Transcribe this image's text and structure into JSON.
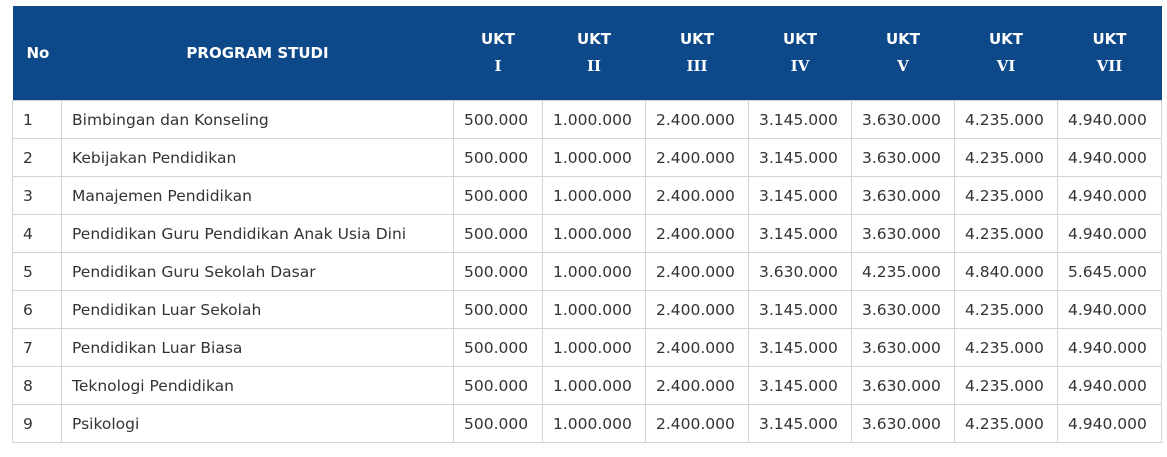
{
  "table": {
    "headers": {
      "no": "No",
      "program": "PROGRAM STUDI",
      "ukt": [
        {
          "word": "UKT",
          "level": "I"
        },
        {
          "word": "UKT",
          "level": "II"
        },
        {
          "word": "UKT",
          "level": "III"
        },
        {
          "word": "UKT",
          "level": "IV"
        },
        {
          "word": "UKT",
          "level": "V"
        },
        {
          "word": "UKT",
          "level": "VI"
        },
        {
          "word": "UKT",
          "level": "VII"
        }
      ]
    },
    "rows": [
      {
        "no": "1",
        "program": "Bimbingan dan Konseling",
        "ukt": [
          "500.000",
          "1.000.000",
          "2.400.000",
          "3.145.000",
          "3.630.000",
          "4.235.000",
          "4.940.000"
        ]
      },
      {
        "no": "2",
        "program": "Kebijakan Pendidikan",
        "ukt": [
          "500.000",
          "1.000.000",
          "2.400.000",
          "3.145.000",
          "3.630.000",
          "4.235.000",
          "4.940.000"
        ]
      },
      {
        "no": "3",
        "program": "Manajemen Pendidikan",
        "ukt": [
          "500.000",
          "1.000.000",
          "2.400.000",
          "3.145.000",
          "3.630.000",
          "4.235.000",
          "4.940.000"
        ]
      },
      {
        "no": "4",
        "program": "Pendidikan Guru Pendidikan Anak Usia Dini",
        "ukt": [
          "500.000",
          "1.000.000",
          "2.400.000",
          "3.145.000",
          "3.630.000",
          "4.235.000",
          "4.940.000"
        ]
      },
      {
        "no": "5",
        "program": "Pendidikan Guru Sekolah Dasar",
        "ukt": [
          "500.000",
          "1.000.000",
          "2.400.000",
          "3.630.000",
          "4.235.000",
          "4.840.000",
          "5.645.000"
        ]
      },
      {
        "no": "6",
        "program": "Pendidikan Luar Sekolah",
        "ukt": [
          "500.000",
          "1.000.000",
          "2.400.000",
          "3.145.000",
          "3.630.000",
          "4.235.000",
          "4.940.000"
        ]
      },
      {
        "no": "7",
        "program": "Pendidikan Luar Biasa",
        "ukt": [
          "500.000",
          "1.000.000",
          "2.400.000",
          "3.145.000",
          "3.630.000",
          "4.235.000",
          "4.940.000"
        ]
      },
      {
        "no": "8",
        "program": "Teknologi Pendidikan",
        "ukt": [
          "500.000",
          "1.000.000",
          "2.400.000",
          "3.145.000",
          "3.630.000",
          "4.235.000",
          "4.940.000"
        ]
      },
      {
        "no": "9",
        "program": "Psikologi",
        "ukt": [
          "500.000",
          "1.000.000",
          "2.400.000",
          "3.145.000",
          "3.630.000",
          "4.235.000",
          "4.940.000"
        ]
      }
    ],
    "colors": {
      "header_bg": "#0d4889",
      "header_text": "#ffffff",
      "border": "#d3d3d3",
      "cell_text": "#333333"
    }
  }
}
